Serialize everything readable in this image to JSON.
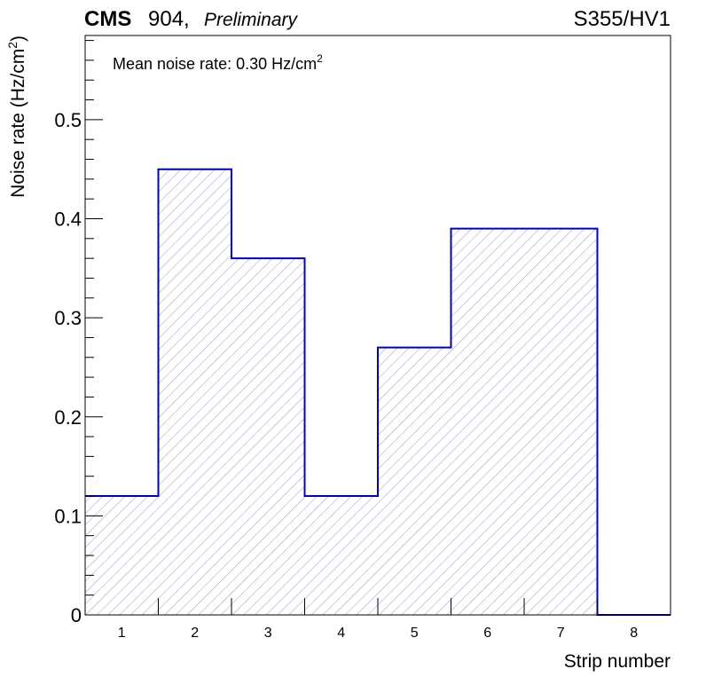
{
  "header": {
    "experiment": "CMS",
    "facility": "904,",
    "status": "Preliminary",
    "run_label": "S355/HV1"
  },
  "annotation": {
    "text": "Mean noise rate: 0.30 Hz/cm",
    "superscript": "2"
  },
  "chart_data": {
    "type": "bar",
    "style": "step-histogram",
    "categories": [
      "1",
      "2",
      "3",
      "4",
      "5",
      "6",
      "7",
      "8"
    ],
    "values": [
      0.12,
      0.45,
      0.36,
      0.12,
      0.27,
      0.39,
      0.39,
      0.0
    ],
    "xlabel": "Strip number",
    "ylabel": "Noise rate (Hz/cm",
    "ylabel_superscript": "2",
    "ylabel_close": ")",
    "ylim": [
      0,
      0.585
    ],
    "y_ticks": [
      "0",
      "0.1",
      "0.2",
      "0.3",
      "0.4",
      "0.5"
    ],
    "y_tick_values": [
      0,
      0.1,
      0.2,
      0.3,
      0.4,
      0.5
    ],
    "y_minor_step": 0.02,
    "grid": false,
    "line_color": "#0000cc",
    "fill": "diagonal-hatch",
    "hatch_color": "#8c8cd8"
  }
}
